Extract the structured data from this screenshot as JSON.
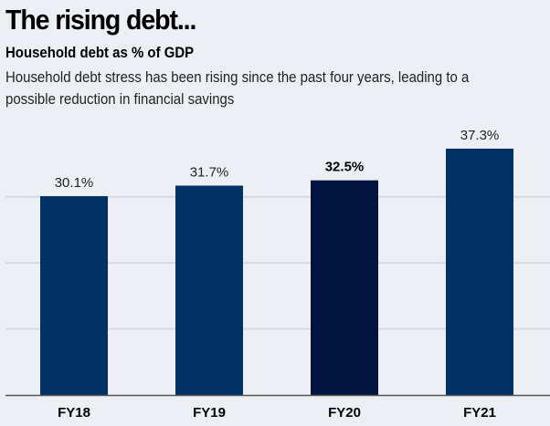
{
  "header": {
    "title": "The rising debt...",
    "subtitle": "Household debt as % of GDP",
    "description": "Household debt stress has been rising since the past four years, leading to a possible reduction in financial savings"
  },
  "colors": {
    "background": "#ecf0f5",
    "bar": "#003263",
    "bar_highlight": "#00143f",
    "grid": "#d6d9de",
    "axis": "#555555"
  },
  "chart_data": {
    "type": "bar",
    "title": "Household debt as % of GDP",
    "xlabel": "",
    "ylabel": "",
    "categories": [
      "FY18",
      "FY19",
      "FY20",
      "FY21"
    ],
    "values": [
      30.1,
      31.7,
      32.5,
      37.3
    ],
    "value_labels": [
      "30.1%",
      "31.7%",
      "32.5%",
      "37.3%"
    ],
    "highlighted_index": 2,
    "ylim": [
      0,
      40
    ],
    "gridlines": [
      10,
      20,
      30
    ],
    "grid": true,
    "legend": "none"
  }
}
